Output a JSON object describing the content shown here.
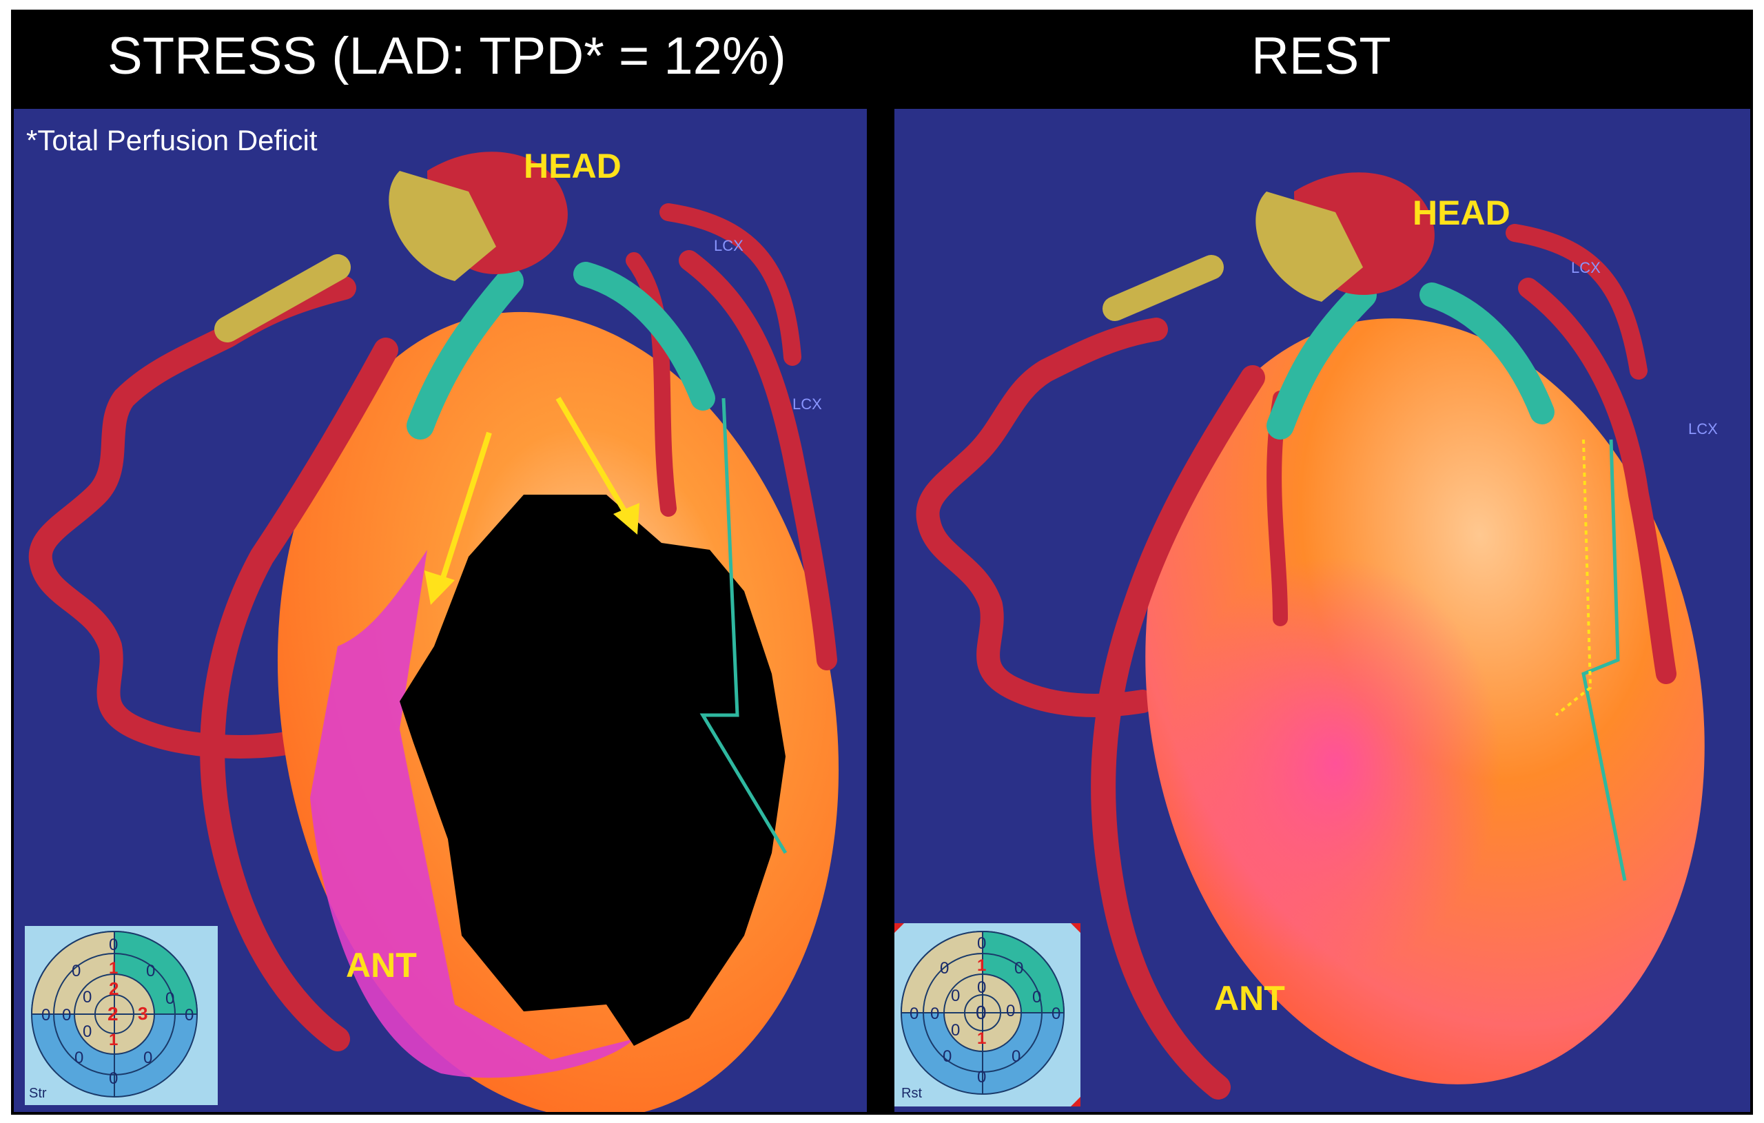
{
  "titles": {
    "stress": "STRESS (LAD:  TPD* = 12%)",
    "rest": "REST"
  },
  "stress_panel": {
    "footnote": "*Total Perfusion Deficit",
    "head_label": "HEAD",
    "ant_label": "ANT",
    "lcx_labels": [
      "LCX",
      "LCX"
    ],
    "polar_map_label": "Str",
    "polar_scores": {
      "ring1": [
        "0",
        "1",
        "0"
      ],
      "ring2": [
        "0",
        "2",
        "0"
      ],
      "center": "2",
      "side": [
        "0",
        "3",
        "0"
      ],
      "lower": [
        "0",
        "1",
        "0",
        "0"
      ],
      "left": [
        "0",
        "0",
        "0"
      ]
    }
  },
  "rest_panel": {
    "head_label": "HEAD",
    "ant_label": "ANT",
    "lcx_labels": [
      "LCX",
      "LCX"
    ],
    "polar_map_label": "Rst",
    "polar_scores": {
      "ring1": [
        "0",
        "1",
        "0"
      ],
      "ring2": [
        "0",
        "0",
        "0"
      ],
      "center": "0",
      "side": [
        "0",
        "0",
        "0"
      ],
      "lower": [
        "0",
        "1",
        "0",
        "0"
      ],
      "left": [
        "0",
        "0",
        "0"
      ]
    }
  },
  "colors": {
    "background_blue": "#2a3088",
    "vessel_red": "#c8283a",
    "myocardium_orange": "#ff8a2a",
    "defect_black": "#000000",
    "annotation_yellow": "#ffe21a",
    "polar_tan": "#d8cca0",
    "polar_green": "#2fb8a0",
    "polar_blue": "#56a6dc"
  }
}
